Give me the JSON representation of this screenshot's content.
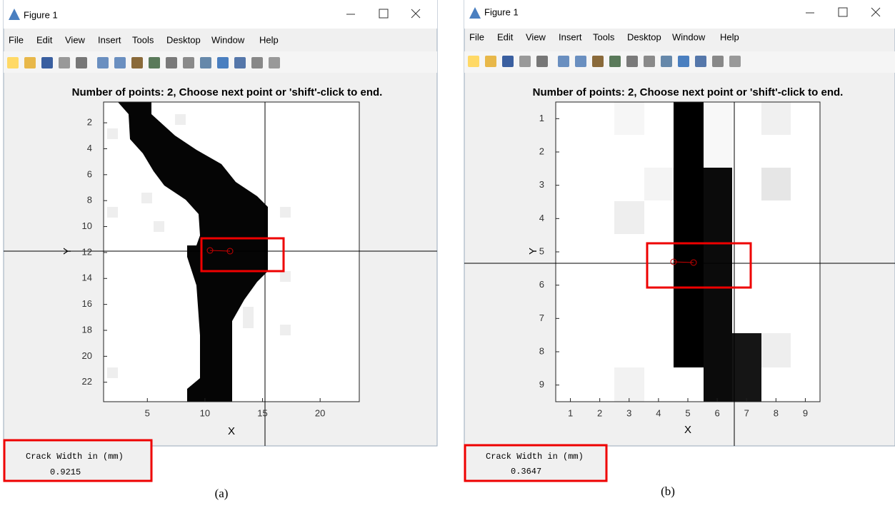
{
  "windows": [
    {
      "title": "Figure 1",
      "menu": [
        "File",
        "Edit",
        "View",
        "Insert",
        "Tools",
        "Desktop",
        "Window",
        "Help"
      ],
      "axes": {
        "title": "Number of points: 2, Choose next point or 'shift'-click to end.",
        "xlabel": "X",
        "ylabel": "Y",
        "xlim": [
          1.2,
          23.4
        ],
        "ylim": [
          0.4,
          23.5
        ],
        "xticks": [
          5,
          10,
          15,
          20
        ],
        "yticks": [
          2,
          4,
          6,
          8,
          10,
          12,
          14,
          16,
          18,
          20,
          22
        ]
      },
      "output": {
        "label": "Crack Width in (mm)",
        "value": "0.9215"
      },
      "caption": "(a)"
    },
    {
      "title": "Figure 1",
      "menu": [
        "File",
        "Edit",
        "View",
        "Insert",
        "Tools",
        "Desktop",
        "Window",
        "Help"
      ],
      "axes": {
        "title": "Number of points: 2, Choose next point or 'shift'-click to end.",
        "xlabel": "X",
        "ylabel": "Y",
        "xlim": [
          0.5,
          9.5
        ],
        "ylim": [
          0.5,
          9.5
        ],
        "xticks": [
          1,
          2,
          3,
          4,
          5,
          6,
          7,
          8,
          9
        ],
        "yticks": [
          1,
          2,
          3,
          4,
          5,
          6,
          7,
          8,
          9
        ]
      },
      "output": {
        "label": "Crack Width in (mm)",
        "value": "0.3647"
      },
      "caption": "(b)"
    }
  ]
}
